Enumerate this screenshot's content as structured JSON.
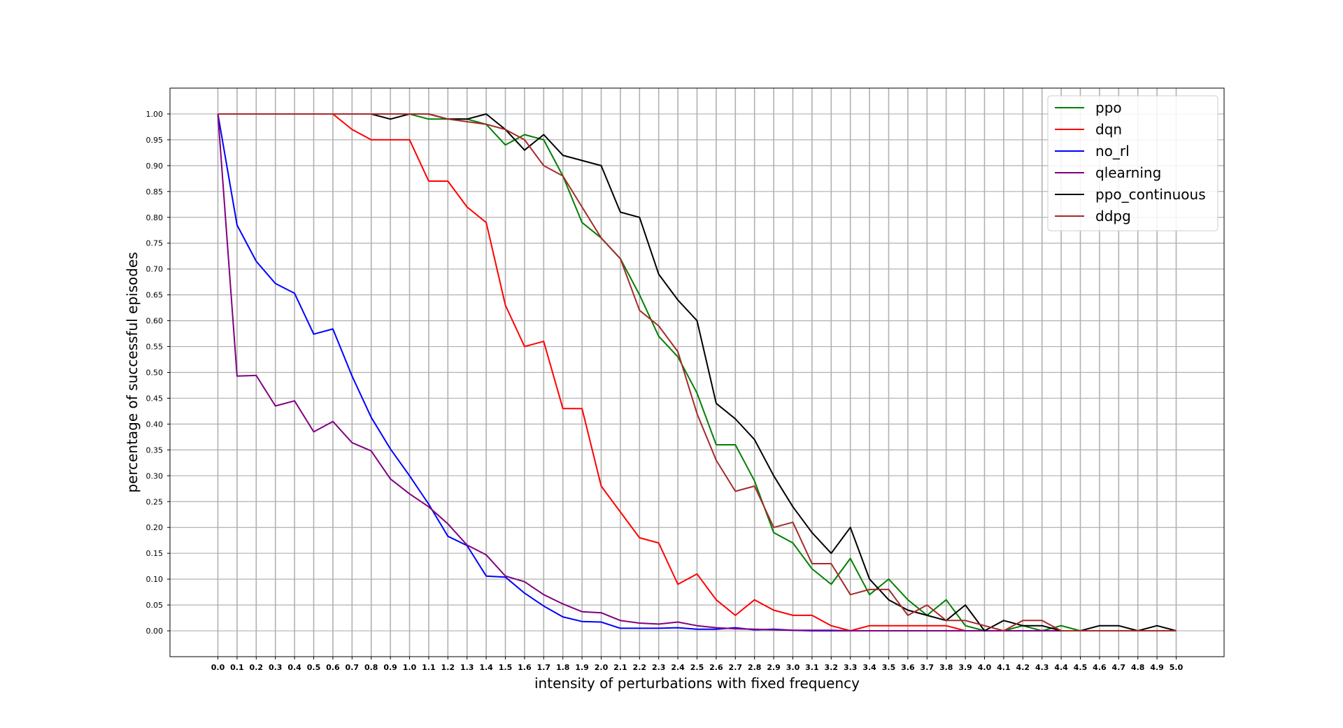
{
  "chart_data": {
    "type": "line",
    "title": "",
    "xlabel": "intensity of perturbations with fixed frequency",
    "ylabel": "percentage of successful episodes",
    "xlim": [
      -0.25,
      5.25
    ],
    "ylim": [
      -0.05,
      1.05
    ],
    "grid": true,
    "legend_position": "top-right",
    "x": [
      0.0,
      0.1,
      0.2,
      0.3,
      0.4,
      0.5,
      0.6,
      0.7,
      0.8,
      0.9,
      1.0,
      1.1,
      1.2,
      1.3,
      1.4,
      1.5,
      1.6,
      1.7,
      1.8,
      1.9,
      2.0,
      2.1,
      2.2,
      2.3,
      2.4,
      2.5,
      2.6,
      2.7,
      2.8,
      2.9,
      3.0,
      3.1,
      3.2,
      3.3,
      3.4,
      3.5,
      3.6,
      3.7,
      3.8,
      3.9,
      4.0,
      4.1,
      4.2,
      4.3,
      4.4,
      4.5,
      4.6,
      4.7,
      4.8,
      4.9,
      5.0
    ],
    "x_tick_labels": [
      "0.0",
      "0.1",
      "0.2",
      "0.3",
      "0.4",
      "0.5",
      "0.6",
      "0.7",
      "0.8",
      "0.9",
      "1.0",
      "1.1",
      "1.2",
      "1.3",
      "1.4",
      "1.5",
      "1.6",
      "1.7",
      "1.8",
      "1.9",
      "2.0",
      "2.1",
      "2.2",
      "2.3",
      "2.4",
      "2.5",
      "2.6",
      "2.7",
      "2.8",
      "2.9",
      "3.0",
      "3.1",
      "3.2",
      "3.3",
      "3.4",
      "3.5",
      "3.6",
      "3.7",
      "3.8",
      "3.9",
      "4.0",
      "4.1",
      "4.2",
      "4.3",
      "4.4",
      "4.5",
      "4.6",
      "4.7",
      "4.8",
      "4.9",
      "5.0"
    ],
    "y_ticks": [
      0.0,
      0.05,
      0.1,
      0.15,
      0.2,
      0.25,
      0.3,
      0.35,
      0.4,
      0.45,
      0.5,
      0.55,
      0.6,
      0.65,
      0.7,
      0.75,
      0.8,
      0.85,
      0.9,
      0.95,
      1.0
    ],
    "y_tick_labels": [
      "0.00",
      "0.05",
      "0.10",
      "0.15",
      "0.20",
      "0.25",
      "0.30",
      "0.35",
      "0.40",
      "0.45",
      "0.50",
      "0.55",
      "0.60",
      "0.65",
      "0.70",
      "0.75",
      "0.80",
      "0.85",
      "0.90",
      "0.95",
      "1.00"
    ],
    "series": [
      {
        "name": "ppo",
        "color": "#008000",
        "values": [
          1.0,
          1.0,
          1.0,
          1.0,
          1.0,
          1.0,
          1.0,
          1.0,
          1.0,
          1.0,
          1.0,
          0.99,
          0.99,
          0.99,
          0.98,
          0.94,
          0.96,
          0.95,
          0.88,
          0.79,
          0.76,
          0.72,
          0.65,
          0.57,
          0.53,
          0.46,
          0.36,
          0.36,
          0.29,
          0.19,
          0.17,
          0.12,
          0.09,
          0.14,
          0.07,
          0.1,
          0.06,
          0.03,
          0.06,
          0.01,
          0.0,
          0.0,
          0.01,
          0.0,
          0.01,
          0.0,
          0.0,
          0.0,
          0.0,
          0.0,
          0.0
        ]
      },
      {
        "name": "dqn",
        "color": "#ff0000",
        "values": [
          1.0,
          1.0,
          1.0,
          1.0,
          1.0,
          1.0,
          1.0,
          0.97,
          0.95,
          0.95,
          0.95,
          0.87,
          0.87,
          0.82,
          0.79,
          0.63,
          0.55,
          0.56,
          0.43,
          0.43,
          0.28,
          0.23,
          0.18,
          0.17,
          0.09,
          0.11,
          0.06,
          0.03,
          0.06,
          0.04,
          0.03,
          0.03,
          0.01,
          0.0,
          0.01,
          0.01,
          0.01,
          0.01,
          0.01,
          0.0,
          0.0,
          0.0,
          0.0,
          0.0,
          0.0,
          0.0,
          0.0,
          0.0,
          0.0,
          0.0,
          0.0
        ]
      },
      {
        "name": "no_rl",
        "color": "#0000ff",
        "values": [
          1.0,
          0.785,
          0.715,
          0.672,
          0.653,
          0.574,
          0.584,
          0.493,
          0.413,
          0.352,
          0.3,
          0.245,
          0.183,
          0.165,
          0.106,
          0.104,
          0.073,
          0.048,
          0.027,
          0.018,
          0.017,
          0.005,
          0.005,
          0.005,
          0.006,
          0.003,
          0.003,
          0.006,
          0.002,
          0.003,
          0.001,
          0.0,
          0.0,
          0.0,
          0.0,
          0.0,
          0.0,
          0.0,
          0.0,
          0.0,
          0.0,
          0.0,
          0.0,
          0.0,
          0.0,
          0.0,
          0.0,
          0.0,
          0.0,
          0.0,
          0.0
        ]
      },
      {
        "name": "qlearning",
        "color": "#800080",
        "values": [
          1.0,
          0.493,
          0.494,
          0.435,
          0.445,
          0.385,
          0.405,
          0.364,
          0.348,
          0.294,
          0.265,
          0.24,
          0.207,
          0.166,
          0.147,
          0.106,
          0.095,
          0.07,
          0.052,
          0.037,
          0.035,
          0.02,
          0.015,
          0.013,
          0.017,
          0.01,
          0.006,
          0.004,
          0.003,
          0.002,
          0.001,
          0.001,
          0.001,
          0.0,
          0.0,
          0.0,
          0.0,
          0.0,
          0.0,
          0.0,
          0.0,
          0.0,
          0.0,
          0.0,
          0.0,
          0.0,
          0.0,
          0.0,
          0.0,
          0.0,
          0.0
        ]
      },
      {
        "name": "ppo_continuous",
        "color": "#000000",
        "values": [
          1.0,
          1.0,
          1.0,
          1.0,
          1.0,
          1.0,
          1.0,
          1.0,
          1.0,
          0.99,
          1.0,
          1.0,
          0.99,
          0.99,
          1.0,
          0.97,
          0.93,
          0.96,
          0.92,
          0.91,
          0.9,
          0.81,
          0.8,
          0.69,
          0.64,
          0.6,
          0.44,
          0.41,
          0.37,
          0.3,
          0.24,
          0.19,
          0.15,
          0.2,
          0.1,
          0.06,
          0.04,
          0.03,
          0.02,
          0.05,
          0.0,
          0.02,
          0.01,
          0.01,
          0.0,
          0.0,
          0.01,
          0.01,
          0.0,
          0.01,
          0.0
        ]
      },
      {
        "name": "ddpg",
        "color": "#a52a2a",
        "values": [
          1.0,
          1.0,
          1.0,
          1.0,
          1.0,
          1.0,
          1.0,
          1.0,
          1.0,
          1.0,
          1.0,
          1.0,
          0.99,
          0.985,
          0.98,
          0.97,
          0.95,
          0.9,
          0.88,
          0.82,
          0.76,
          0.72,
          0.62,
          0.59,
          0.54,
          0.42,
          0.33,
          0.27,
          0.28,
          0.2,
          0.21,
          0.13,
          0.13,
          0.07,
          0.08,
          0.08,
          0.03,
          0.05,
          0.02,
          0.02,
          0.01,
          0.0,
          0.02,
          0.02,
          0.0,
          0.0,
          0.0,
          0.0,
          0.0,
          0.0,
          0.0
        ]
      }
    ]
  }
}
